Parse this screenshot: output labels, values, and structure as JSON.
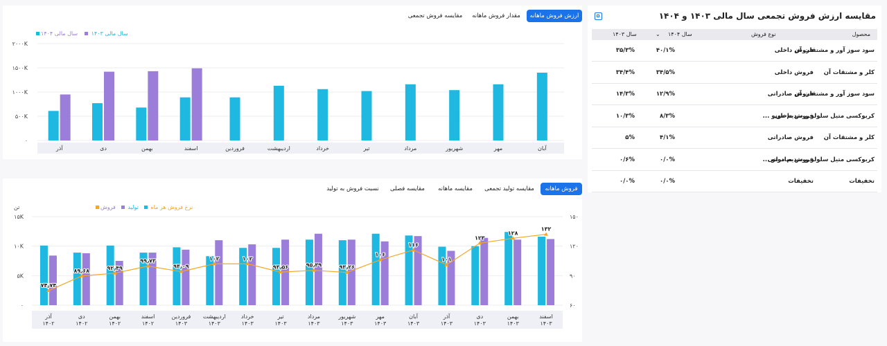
{
  "top_chart": {
    "tabs": [
      "ارزش فروش ماهانه",
      "مقدار فروش ماهانه",
      "مقایسه فروش تجمعی"
    ],
    "legend": [
      "سال مالی ۱۴۰۴",
      "سال مالی ۱۴۰۳"
    ],
    "colors": {
      "y1404": "#9b7ed9",
      "y1403": "#1fb8e0"
    }
  },
  "bottom_chart": {
    "tabs": [
      "فروش ماهانه",
      "مقایسه تولید تجمعی",
      "مقایسه ماهانه",
      "مقایسه فصلی",
      "نسبت فروش به تولید"
    ],
    "legend": [
      "فروش",
      "تولید",
      "نرخ فروش هر ماه"
    ],
    "left_unit": "تن",
    "colors": {
      "sales": "#9b7ed9",
      "production": "#1fb8e0",
      "rate": "#f5a623"
    }
  },
  "table": {
    "title": "مقایسه ارزش فروش تجمعی سال مالی ۱۴۰۳ و ۱۴۰۴",
    "headers": {
      "product": "محصول",
      "type": "نوع فروش",
      "y1404": "سال ۱۴۰۴",
      "y1403": "سال ۱۴۰۳"
    },
    "rows": [
      {
        "product": "سود سوز آور و مشتقات آن",
        "type": "فروش داخلی",
        "y1404": "۴۰/۱%",
        "y1403": "۳۵/۳%"
      },
      {
        "product": "کلر و مشتقات آن",
        "type": "فروش داخلی",
        "y1404": "۳۴/۵%",
        "y1403": "۳۴/۴%"
      },
      {
        "product": "سود سوز آور و مشتقات آن",
        "type": "فروش صادراتی",
        "y1404": "۱۲/۹%",
        "y1403": "۱۴/۳%"
      },
      {
        "product": "کربوکسی متیل سلولز و سدیم مونو ...",
        "type": "فروش داخلی",
        "y1404": "۸/۳%",
        "y1403": "۱۰/۳%"
      },
      {
        "product": "کلر و مشتقات آن",
        "type": "فروش صادراتی",
        "y1404": "۴/۱%",
        "y1403": "۵%"
      },
      {
        "product": "کربوکسی متیل سلولز و سدیم مونو ...",
        "type": "فروش صادراتی",
        "y1404": "۰/۰%",
        "y1403": "۰/۶%"
      },
      {
        "product": "تخفیفات",
        "type": "تخفیفات",
        "y1404": "۰/۰%",
        "y1403": "۰/۰%"
      }
    ]
  },
  "chart_data": [
    {
      "type": "bar",
      "categories": [
        "آذر",
        "دی",
        "بهمن",
        "اسفند",
        "فروردین",
        "اردیبهشت",
        "خرداد",
        "تیر",
        "مرداد",
        "شهریور",
        "مهر",
        "آبان"
      ],
      "series": [
        {
          "name": "سال مالی ۱۴۰۳",
          "values": [
            610,
            770,
            680,
            890,
            890,
            1130,
            1060,
            1020,
            1160,
            1040,
            1160,
            1400
          ]
        },
        {
          "name": "سال مالی ۱۴۰۴",
          "values": [
            950,
            1420,
            1430,
            1490,
            null,
            null,
            null,
            null,
            null,
            null,
            null,
            null
          ]
        }
      ],
      "yticks": [
        "۰",
        "۵۰۰K",
        "۱۰۰۰K",
        "۱۵۰۰K",
        "۲۰۰۰K"
      ],
      "ylim": [
        0,
        2000
      ]
    },
    {
      "type": "bar",
      "categories": [
        "آذر\n۱۴۰۲",
        "دی\n۱۴۰۲",
        "بهمن\n۱۴۰۲",
        "اسفند\n۱۴۰۲",
        "فروردین\n۱۴۰۳",
        "اردیبهشت\n۱۴۰۳",
        "خرداد\n۱۴۰۳",
        "تیر\n۱۴۰۳",
        "مرداد\n۱۴۰۳",
        "شهریور\n۱۴۰۳",
        "مهر\n۱۴۰۳",
        "آبان\n۱۴۰۳",
        "آذر\n۱۴۰۳",
        "دی\n۱۴۰۳",
        "بهمن\n۱۴۰۳",
        "اسفند\n۱۴۰۳"
      ],
      "series": [
        {
          "name": "تولید",
          "values": [
            10100,
            8900,
            10100,
            8900,
            9800,
            8300,
            9700,
            9700,
            11100,
            11000,
            12100,
            11800,
            9900,
            10000,
            12400,
            11600
          ]
        },
        {
          "name": "فروش",
          "values": [
            8400,
            8800,
            7500,
            8900,
            9400,
            11000,
            10300,
            11100,
            12100,
            11100,
            10800,
            11700,
            9200,
            11400,
            11100,
            11200
          ]
        },
        {
          "name": "نرخ فروش هر ماه",
          "values": [
            74.74,
            89.68,
            92.49,
            99.73,
            94.09,
            102,
            102,
            93.56,
            95.39,
            93.26,
            106,
            116,
            101,
            123,
            128,
            132
          ]
        }
      ],
      "point_labels": [
        "۷۴٫۷۴",
        "۸۹٫۶۸",
        "۹۲٫۴۹",
        "۹۹٫۷۳",
        "۹۴٫۰۹",
        "۱۰۲",
        "۱۰۲",
        "۹۳٫۵۶",
        "۹۵٫۳۹",
        "۹۳٫۲۶",
        "۱۰۶",
        "۱۱۶",
        "۱۰۱",
        "۱۲۳",
        "۱۲۸",
        "۱۳۲"
      ],
      "yticks_left": [
        "۰",
        "۵K",
        "۱۰K",
        "۱۵K"
      ],
      "ylim_left": [
        0,
        15000
      ],
      "yticks_right": [
        "۶۰",
        "۹۰",
        "۱۲۰",
        "۱۵۰"
      ],
      "ylim_right": [
        60,
        150
      ]
    }
  ]
}
